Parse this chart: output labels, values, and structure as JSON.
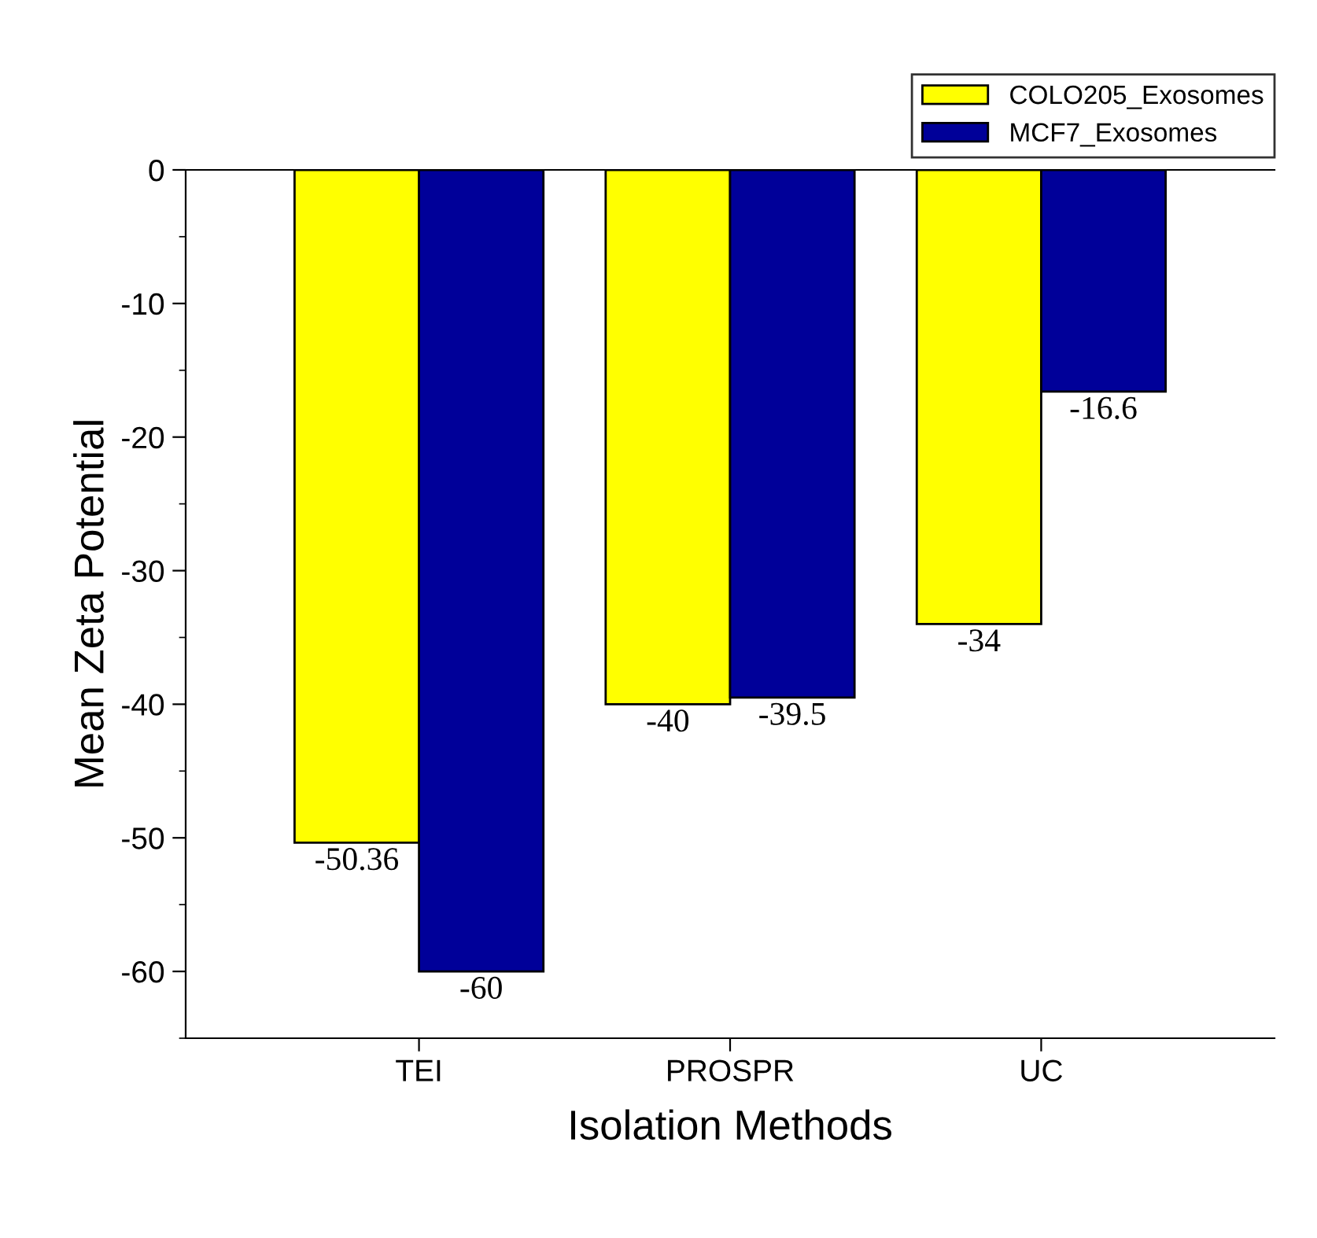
{
  "chart_data": {
    "type": "bar",
    "xlabel": "Isolation Methods",
    "ylabel": "Mean Zeta Potential",
    "categories": [
      "TEI",
      "PROSPR",
      "UC"
    ],
    "series": [
      {
        "name": "COLO205_Exosomes",
        "color": "#ffff00",
        "values": [
          -50.36,
          -40,
          -34
        ]
      },
      {
        "name": "MCF7_Exosomes",
        "color": "#000099",
        "values": [
          -60,
          -39.5,
          -16.6
        ]
      }
    ],
    "ylim": [
      -65,
      0
    ],
    "yticks": [
      -60,
      -50,
      -40,
      -30,
      -20,
      -10,
      0
    ],
    "data_labels": true,
    "legend": "top right",
    "grid": false
  }
}
